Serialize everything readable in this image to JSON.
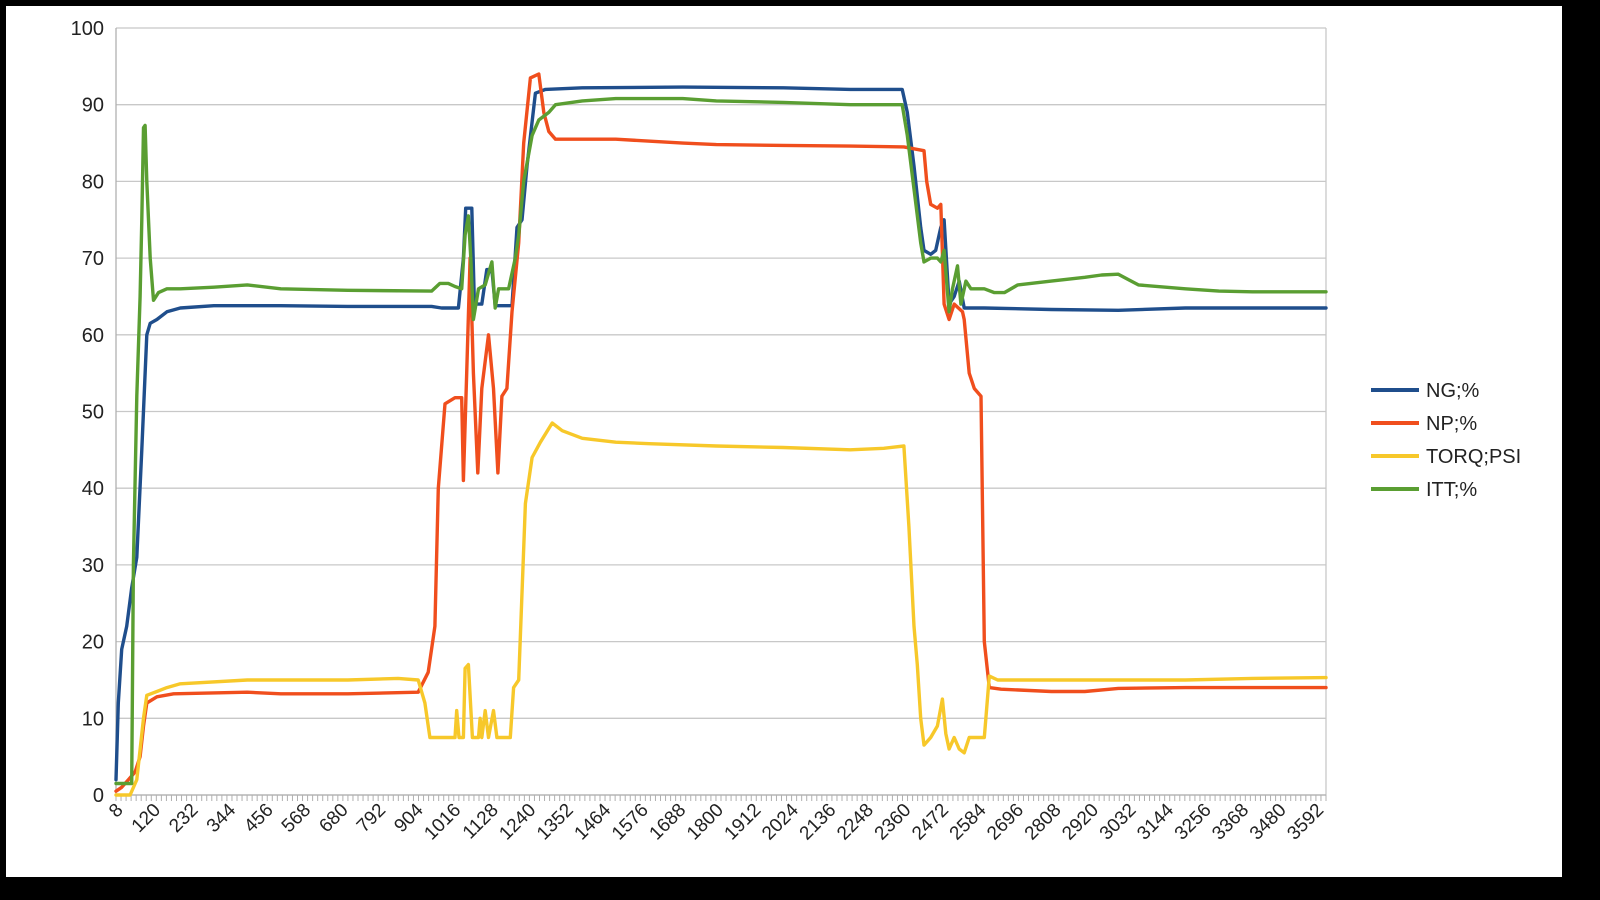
{
  "chart_data": {
    "type": "line",
    "title": "",
    "xlabel": "",
    "ylabel": "",
    "xlim": [
      8,
      3620
    ],
    "ylim": [
      0,
      100
    ],
    "y_ticks": [
      "0",
      "10",
      "20",
      "30",
      "40",
      "50",
      "60",
      "70",
      "80",
      "90",
      "100"
    ],
    "x_tick_labels": [
      "8",
      "120",
      "232",
      "344",
      "456",
      "568",
      "680",
      "792",
      "904",
      "1016",
      "1128",
      "1240",
      "1352",
      "1464",
      "1576",
      "1688",
      "1800",
      "1912",
      "2024",
      "2136",
      "2248",
      "2360",
      "2472",
      "2584",
      "2696",
      "2808",
      "2920",
      "3032",
      "3144",
      "3256",
      "3368",
      "3480",
      "3592"
    ],
    "x_tick_values": [
      8,
      120,
      232,
      344,
      456,
      568,
      680,
      792,
      904,
      1016,
      1128,
      1240,
      1352,
      1464,
      1576,
      1688,
      1800,
      1912,
      2024,
      2136,
      2248,
      2360,
      2472,
      2584,
      2696,
      2808,
      2920,
      3032,
      3144,
      3256,
      3368,
      3480,
      3592
    ],
    "grid": "horizontal",
    "legend_position": "right",
    "series": [
      {
        "name": "NG;%",
        "color": "#1f4e8c",
        "points": [
          [
            8,
            2
          ],
          [
            15,
            12
          ],
          [
            25,
            19
          ],
          [
            40,
            22
          ],
          [
            55,
            27
          ],
          [
            70,
            31
          ],
          [
            85,
            45
          ],
          [
            100,
            60
          ],
          [
            110,
            61.5
          ],
          [
            130,
            62
          ],
          [
            160,
            63
          ],
          [
            200,
            63.5
          ],
          [
            300,
            63.8
          ],
          [
            500,
            63.8
          ],
          [
            700,
            63.7
          ],
          [
            950,
            63.7
          ],
          [
            980,
            63.5
          ],
          [
            1030,
            63.5
          ],
          [
            1045,
            70
          ],
          [
            1052,
            76.5
          ],
          [
            1070,
            76.5
          ],
          [
            1078,
            64
          ],
          [
            1100,
            64
          ],
          [
            1115,
            68.5
          ],
          [
            1130,
            68.5
          ],
          [
            1140,
            63.8
          ],
          [
            1190,
            63.8
          ],
          [
            1205,
            74
          ],
          [
            1220,
            75
          ],
          [
            1235,
            82
          ],
          [
            1260,
            91.5
          ],
          [
            1290,
            92
          ],
          [
            1400,
            92.2
          ],
          [
            1700,
            92.3
          ],
          [
            2000,
            92.2
          ],
          [
            2200,
            92
          ],
          [
            2355,
            92
          ],
          [
            2370,
            89
          ],
          [
            2390,
            82
          ],
          [
            2410,
            74
          ],
          [
            2420,
            71
          ],
          [
            2440,
            70.5
          ],
          [
            2455,
            71
          ],
          [
            2470,
            74
          ],
          [
            2480,
            75
          ],
          [
            2495,
            64
          ],
          [
            2510,
            65
          ],
          [
            2525,
            67
          ],
          [
            2540,
            63.5
          ],
          [
            2600,
            63.5
          ],
          [
            2800,
            63.3
          ],
          [
            3000,
            63.2
          ],
          [
            3200,
            63.5
          ],
          [
            3400,
            63.5
          ],
          [
            3620,
            63.5
          ]
        ]
      },
      {
        "name": "NP;%",
        "color": "#f04e1d",
        "points": [
          [
            8,
            0.5
          ],
          [
            25,
            1
          ],
          [
            45,
            2
          ],
          [
            65,
            3
          ],
          [
            80,
            5
          ],
          [
            90,
            9
          ],
          [
            100,
            12
          ],
          [
            130,
            12.8
          ],
          [
            180,
            13.2
          ],
          [
            400,
            13.4
          ],
          [
            500,
            13.2
          ],
          [
            700,
            13.2
          ],
          [
            910,
            13.4
          ],
          [
            940,
            16
          ],
          [
            960,
            22
          ],
          [
            970,
            40
          ],
          [
            990,
            51
          ],
          [
            1020,
            51.8
          ],
          [
            1040,
            51.8
          ],
          [
            1045,
            41
          ],
          [
            1055,
            55
          ],
          [
            1065,
            70
          ],
          [
            1075,
            55
          ],
          [
            1088,
            42
          ],
          [
            1100,
            53
          ],
          [
            1120,
            60
          ],
          [
            1135,
            53
          ],
          [
            1148,
            42
          ],
          [
            1160,
            52
          ],
          [
            1175,
            53
          ],
          [
            1190,
            63
          ],
          [
            1210,
            72
          ],
          [
            1225,
            85
          ],
          [
            1245,
            93.5
          ],
          [
            1270,
            94
          ],
          [
            1285,
            89
          ],
          [
            1300,
            86.5
          ],
          [
            1320,
            85.5
          ],
          [
            1500,
            85.5
          ],
          [
            1700,
            85
          ],
          [
            1800,
            84.8
          ],
          [
            2000,
            84.7
          ],
          [
            2200,
            84.6
          ],
          [
            2360,
            84.5
          ],
          [
            2420,
            84
          ],
          [
            2428,
            80
          ],
          [
            2440,
            77
          ],
          [
            2460,
            76.5
          ],
          [
            2470,
            77
          ],
          [
            2480,
            64
          ],
          [
            2495,
            62
          ],
          [
            2510,
            64
          ],
          [
            2535,
            63
          ],
          [
            2540,
            62
          ],
          [
            2555,
            55
          ],
          [
            2570,
            53
          ],
          [
            2590,
            52
          ],
          [
            2600,
            20
          ],
          [
            2615,
            14
          ],
          [
            2650,
            13.8
          ],
          [
            2800,
            13.5
          ],
          [
            2900,
            13.5
          ],
          [
            3000,
            13.9
          ],
          [
            3200,
            14
          ],
          [
            3400,
            14
          ],
          [
            3620,
            14
          ]
        ]
      },
      {
        "name": "TORQ;PSI",
        "color": "#f7c82a",
        "points": [
          [
            8,
            0
          ],
          [
            50,
            0
          ],
          [
            70,
            2
          ],
          [
            90,
            10
          ],
          [
            100,
            13
          ],
          [
            130,
            13.5
          ],
          [
            160,
            14
          ],
          [
            200,
            14.5
          ],
          [
            400,
            15
          ],
          [
            700,
            15
          ],
          [
            850,
            15.2
          ],
          [
            910,
            15
          ],
          [
            930,
            12
          ],
          [
            945,
            7.5
          ],
          [
            1000,
            7.5
          ],
          [
            1020,
            7.5
          ],
          [
            1025,
            11
          ],
          [
            1032,
            7.5
          ],
          [
            1045,
            7.5
          ],
          [
            1050,
            16.5
          ],
          [
            1060,
            17
          ],
          [
            1072,
            7.5
          ],
          [
            1090,
            7.5
          ],
          [
            1095,
            10
          ],
          [
            1100,
            7.5
          ],
          [
            1110,
            11
          ],
          [
            1120,
            7.5
          ],
          [
            1135,
            11
          ],
          [
            1145,
            7.5
          ],
          [
            1160,
            7.5
          ],
          [
            1175,
            7.5
          ],
          [
            1185,
            7.5
          ],
          [
            1195,
            14
          ],
          [
            1210,
            15
          ],
          [
            1230,
            38
          ],
          [
            1250,
            44
          ],
          [
            1275,
            46
          ],
          [
            1310,
            48.5
          ],
          [
            1340,
            47.5
          ],
          [
            1400,
            46.5
          ],
          [
            1500,
            46
          ],
          [
            1600,
            45.8
          ],
          [
            1800,
            45.5
          ],
          [
            2000,
            45.3
          ],
          [
            2200,
            45
          ],
          [
            2300,
            45.2
          ],
          [
            2360,
            45.5
          ],
          [
            2375,
            35
          ],
          [
            2390,
            22
          ],
          [
            2400,
            17
          ],
          [
            2410,
            10
          ],
          [
            2420,
            6.5
          ],
          [
            2440,
            7.5
          ],
          [
            2460,
            9
          ],
          [
            2475,
            12.5
          ],
          [
            2485,
            8
          ],
          [
            2495,
            6
          ],
          [
            2510,
            7.5
          ],
          [
            2525,
            6
          ],
          [
            2540,
            5.5
          ],
          [
            2555,
            7.5
          ],
          [
            2580,
            7.5
          ],
          [
            2600,
            7.5
          ],
          [
            2615,
            15.5
          ],
          [
            2640,
            15
          ],
          [
            2800,
            15
          ],
          [
            3000,
            15
          ],
          [
            3200,
            15
          ],
          [
            3400,
            15.2
          ],
          [
            3620,
            15.3
          ]
        ]
      },
      {
        "name": "ITT;%",
        "color": "#5a9e32",
        "points": [
          [
            8,
            1.5
          ],
          [
            55,
            1.5
          ],
          [
            60,
            30
          ],
          [
            70,
            52
          ],
          [
            80,
            65
          ],
          [
            85,
            75
          ],
          [
            90,
            87
          ],
          [
            95,
            87.3
          ],
          [
            100,
            80
          ],
          [
            110,
            70
          ],
          [
            120,
            64.5
          ],
          [
            135,
            65.5
          ],
          [
            160,
            66
          ],
          [
            200,
            66
          ],
          [
            300,
            66.2
          ],
          [
            400,
            66.5
          ],
          [
            500,
            66
          ],
          [
            700,
            65.8
          ],
          [
            950,
            65.7
          ],
          [
            975,
            66.7
          ],
          [
            1000,
            66.7
          ],
          [
            1020,
            66.3
          ],
          [
            1040,
            66
          ],
          [
            1050,
            73
          ],
          [
            1060,
            75.5
          ],
          [
            1067,
            70
          ],
          [
            1075,
            62
          ],
          [
            1090,
            66
          ],
          [
            1110,
            66.5
          ],
          [
            1130,
            69.5
          ],
          [
            1140,
            63.5
          ],
          [
            1150,
            66
          ],
          [
            1180,
            66
          ],
          [
            1200,
            70
          ],
          [
            1210,
            73
          ],
          [
            1225,
            80
          ],
          [
            1250,
            86
          ],
          [
            1270,
            88
          ],
          [
            1300,
            89
          ],
          [
            1320,
            90
          ],
          [
            1400,
            90.5
          ],
          [
            1500,
            90.8
          ],
          [
            1700,
            90.8
          ],
          [
            1800,
            90.5
          ],
          [
            2000,
            90.3
          ],
          [
            2200,
            90
          ],
          [
            2355,
            90
          ],
          [
            2370,
            86
          ],
          [
            2390,
            79
          ],
          [
            2410,
            72
          ],
          [
            2420,
            69.5
          ],
          [
            2440,
            70
          ],
          [
            2460,
            70
          ],
          [
            2470,
            69.5
          ],
          [
            2480,
            71
          ],
          [
            2495,
            63
          ],
          [
            2505,
            66
          ],
          [
            2520,
            69
          ],
          [
            2530,
            64
          ],
          [
            2545,
            67
          ],
          [
            2560,
            66
          ],
          [
            2600,
            66
          ],
          [
            2630,
            65.5
          ],
          [
            2660,
            65.5
          ],
          [
            2700,
            66.5
          ],
          [
            2800,
            67
          ],
          [
            2900,
            67.5
          ],
          [
            2950,
            67.8
          ],
          [
            3000,
            67.9
          ],
          [
            3030,
            67.2
          ],
          [
            3060,
            66.5
          ],
          [
            3200,
            66
          ],
          [
            3300,
            65.7
          ],
          [
            3400,
            65.6
          ],
          [
            3500,
            65.6
          ],
          [
            3620,
            65.6
          ]
        ]
      }
    ]
  }
}
